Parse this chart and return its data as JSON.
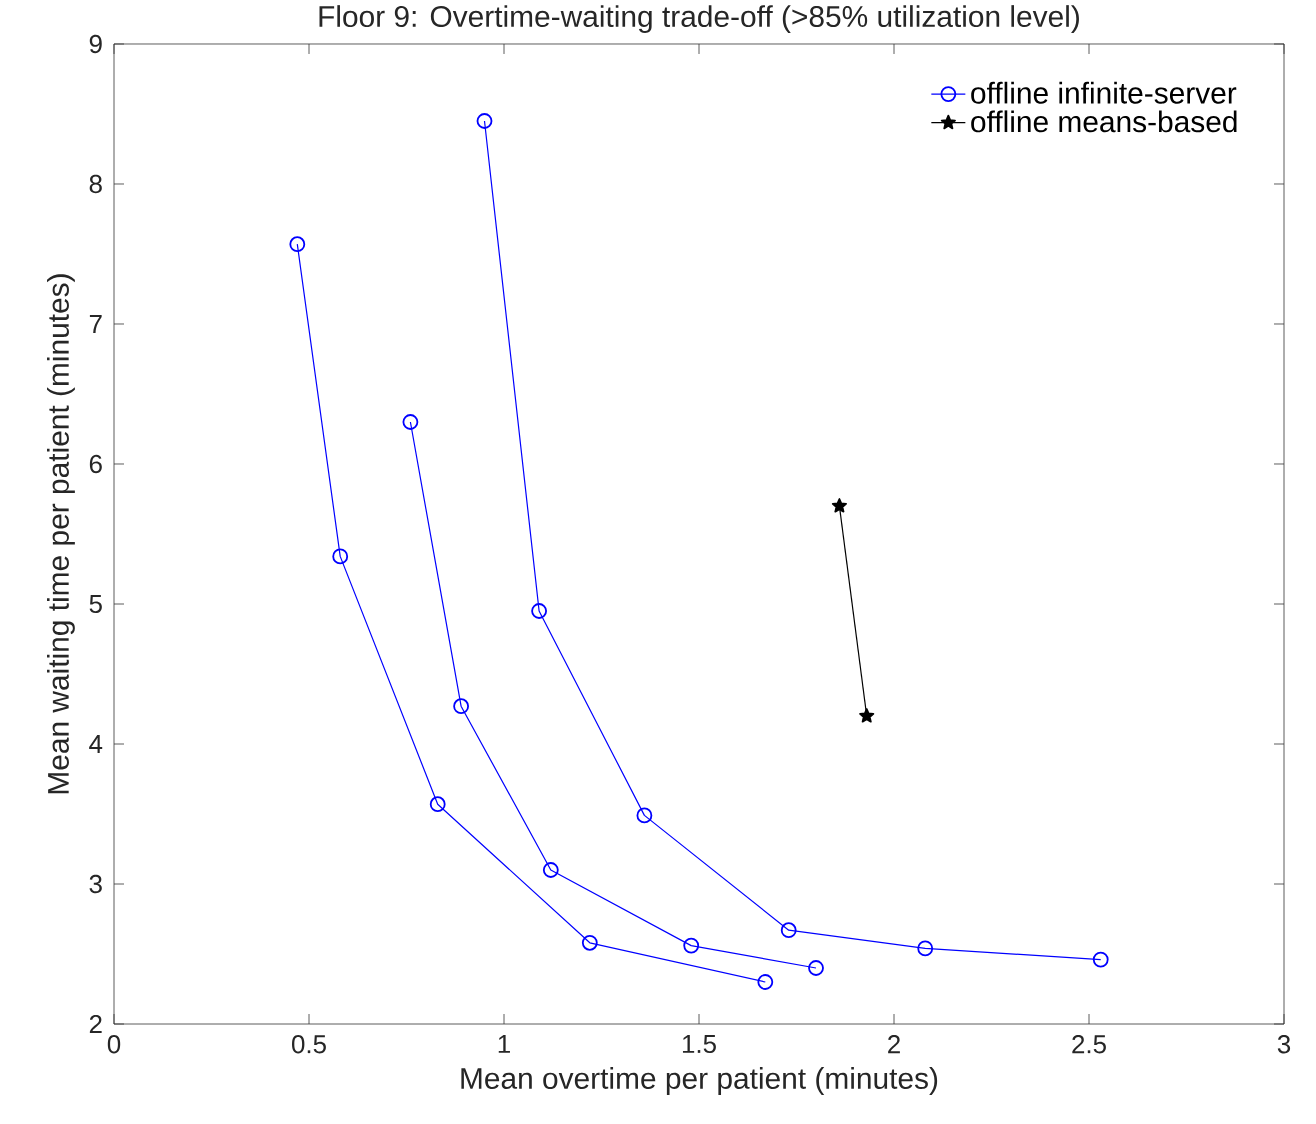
{
  "chart_data": {
    "type": "line",
    "title": "Floor 9: Overtime-waiting trade-off (>85% utilization level)",
    "xlabel": "Mean overtime per patient (minutes)",
    "ylabel": "Mean waiting time per patient (minutes)",
    "xlim": [
      0,
      3
    ],
    "ylim": [
      2,
      9
    ],
    "xticks": [
      0,
      0.5,
      1,
      1.5,
      2,
      2.5,
      3
    ],
    "yticks": [
      2,
      3,
      4,
      5,
      6,
      7,
      8,
      9
    ],
    "grid": false,
    "legend": "top right",
    "line_style": "solid",
    "series": [
      {
        "name": "offline infinite-server",
        "color": "#0000ff",
        "marker": "circle",
        "x": [
          0.47,
          0.58,
          0.83,
          1.22,
          1.67
        ],
        "values": [
          7.57,
          5.34,
          3.57,
          2.58,
          2.3
        ]
      },
      {
        "color": "#0000ff",
        "marker": "circle",
        "x": [
          0.76,
          0.89,
          1.12,
          1.48,
          1.8
        ],
        "values": [
          6.3,
          4.27,
          3.1,
          2.56,
          2.4
        ]
      },
      {
        "color": "#0000ff",
        "marker": "circle",
        "x": [
          0.95,
          1.09,
          1.36,
          1.73,
          2.08,
          2.53
        ],
        "values": [
          8.45,
          4.95,
          3.49,
          2.67,
          2.54,
          2.46
        ]
      },
      {
        "name": "offline means-based",
        "color": "#000000",
        "marker": "star",
        "x": [
          1.86,
          1.93
        ],
        "values": [
          5.7,
          4.2
        ]
      }
    ]
  }
}
